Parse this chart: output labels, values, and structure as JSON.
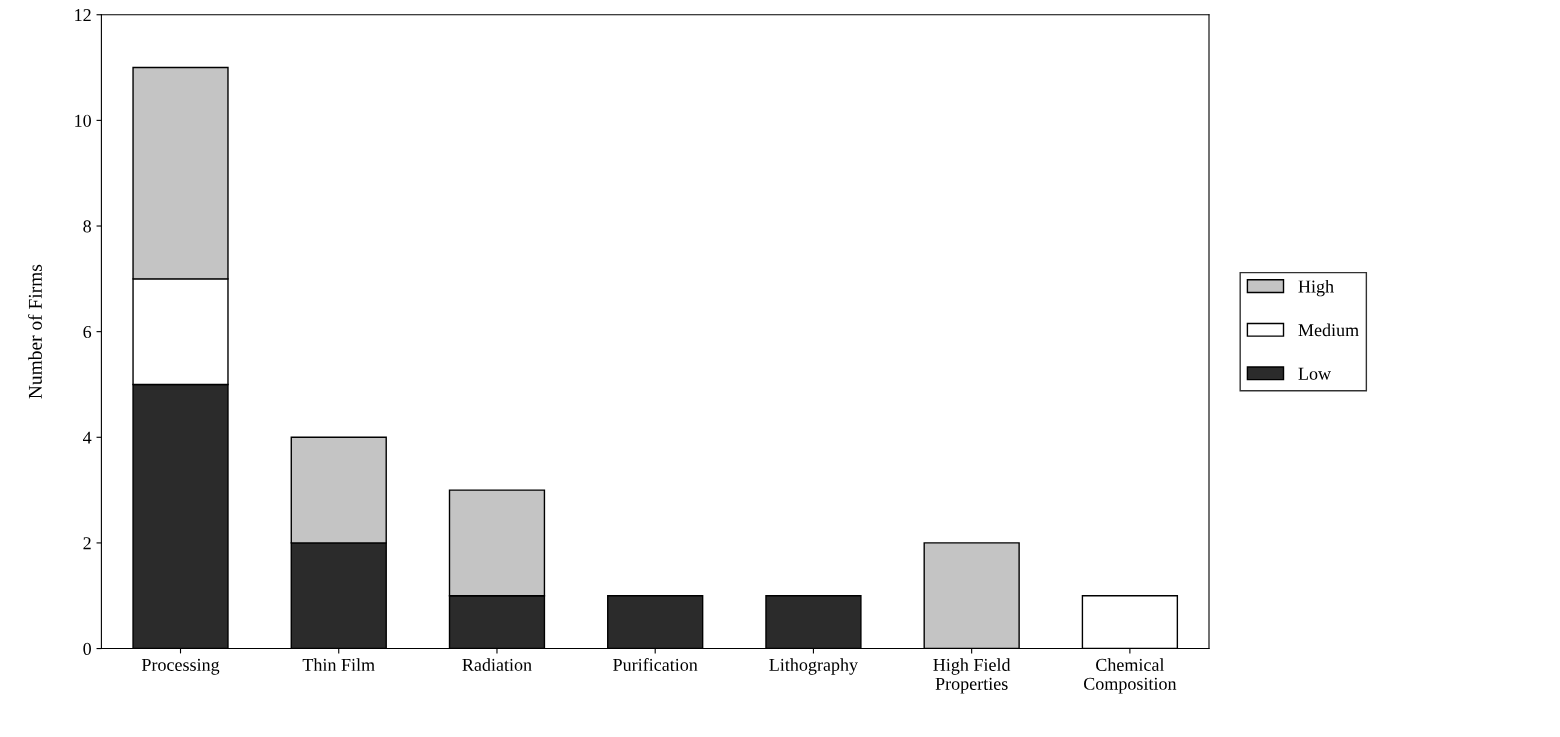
{
  "chart_data": {
    "type": "bar",
    "stacked": true,
    "ylabel": "Number of Firms",
    "categories": [
      "Processing",
      "Thin Film",
      "Radiation",
      "Purification",
      "Lithography",
      "High Field\nProperties",
      "Chemical\nComposition"
    ],
    "series": [
      {
        "name": "Low",
        "color": "#2b2b2b",
        "values": [
          5,
          2,
          1,
          1,
          1,
          0,
          0
        ]
      },
      {
        "name": "Medium",
        "color": "#ffffff",
        "values": [
          2,
          0,
          0,
          0,
          0,
          0,
          1
        ]
      },
      {
        "name": "High",
        "color": "#c4c4c4",
        "values": [
          4,
          2,
          2,
          0,
          0,
          2,
          0
        ]
      }
    ],
    "ylim": [
      0,
      12
    ],
    "yticks": [
      0,
      2,
      4,
      6,
      8,
      10,
      12
    ],
    "grid": false,
    "legend": "right"
  }
}
